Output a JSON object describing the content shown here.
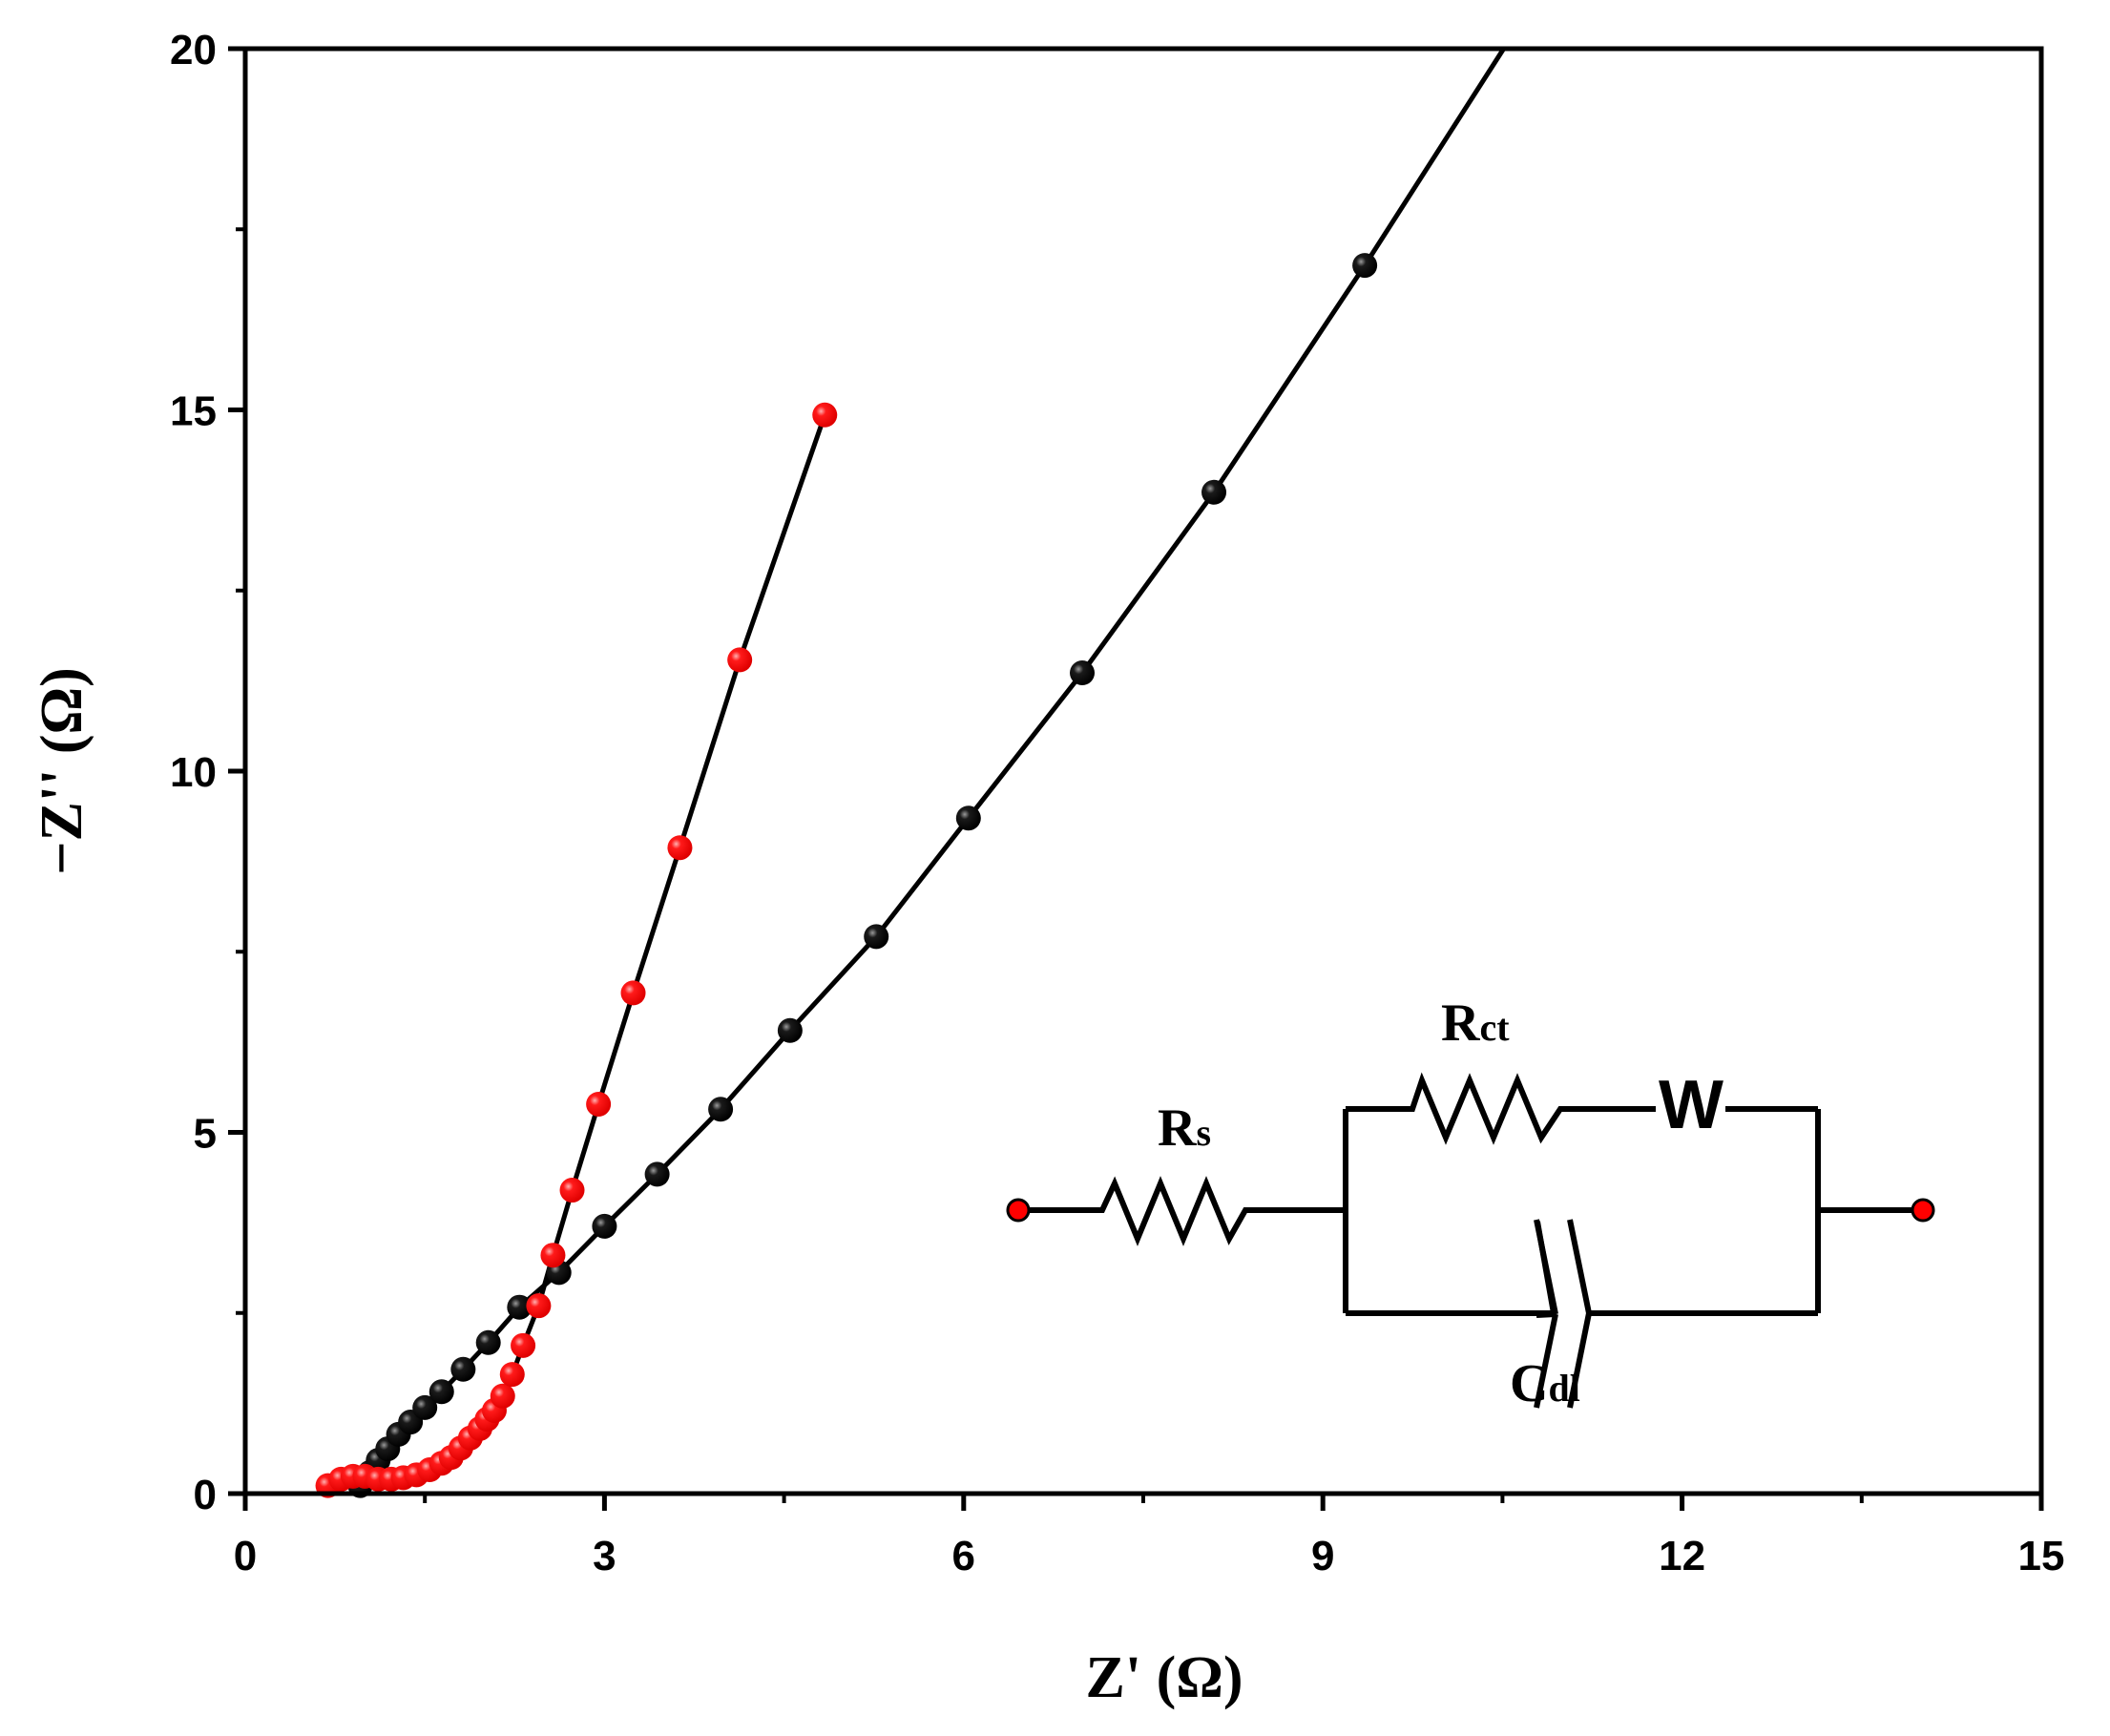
{
  "chart_data": {
    "type": "scatter",
    "title": "",
    "xlabel": "Z' (Ω)",
    "ylabel": "−Z'' (Ω)",
    "xlim": [
      0,
      15
    ],
    "ylim": [
      0,
      20
    ],
    "xticks": [
      0,
      3,
      6,
      9,
      12,
      15
    ],
    "yticks": [
      0,
      5,
      10,
      15,
      20
    ],
    "xtick_labels": [
      "0",
      "3",
      "6",
      "9",
      "12",
      "15"
    ],
    "ytick_labels": [
      "0",
      "5",
      "10",
      "15",
      "20"
    ],
    "grid": false,
    "legend": null,
    "series": [
      {
        "name": "red series",
        "color": "#ff0000",
        "marker": "sphere",
        "line": true,
        "x": [
          0.69,
          0.8,
          0.9,
          1.0,
          1.11,
          1.22,
          1.32,
          1.43,
          1.54,
          1.64,
          1.72,
          1.8,
          1.88,
          1.96,
          2.02,
          2.08,
          2.15,
          2.23,
          2.32,
          2.45,
          2.57,
          2.73,
          2.95,
          3.24,
          3.63,
          4.13,
          4.84
        ],
        "y": [
          0.11,
          0.2,
          0.24,
          0.24,
          0.2,
          0.2,
          0.22,
          0.26,
          0.33,
          0.42,
          0.5,
          0.63,
          0.77,
          0.9,
          1.03,
          1.15,
          1.35,
          1.65,
          2.05,
          2.6,
          3.3,
          4.2,
          5.39,
          6.93,
          8.94,
          11.54,
          14.93
        ]
      },
      {
        "name": "black series",
        "color": "#000000",
        "marker": "sphere",
        "line": true,
        "x": [
          0.96,
          1.04,
          1.11,
          1.19,
          1.28,
          1.38,
          1.5,
          1.64,
          1.82,
          2.03,
          2.29,
          2.62,
          3.0,
          3.44,
          3.97,
          4.55,
          5.27,
          6.04,
          6.99,
          8.09,
          9.35,
          10.51
        ],
        "y": [
          0.11,
          0.29,
          0.46,
          0.62,
          0.82,
          0.99,
          1.19,
          1.41,
          1.72,
          2.09,
          2.58,
          3.06,
          3.7,
          4.42,
          5.32,
          6.41,
          7.71,
          9.35,
          11.36,
          13.86,
          17.0,
          20.0
        ],
        "note_last_point": "line continues to top edge; last value is line end, no marker"
      }
    ],
    "annotations": {
      "equivalent_circuit": {
        "elements": [
          "Rs",
          "Rct",
          "W",
          "Cdl"
        ],
        "topology": "Rs in series with (Rct + W) parallel to Cdl"
      }
    }
  },
  "circuit": {
    "rs_main": "R",
    "rs_sub": "s",
    "rct_main": "R",
    "rct_sub": "ct",
    "w": "W",
    "cdl_main": "C",
    "cdl_sub": "dl"
  },
  "axes": {
    "x_title": "Z' (Ω)",
    "y_title": "−Z'' (Ω)"
  }
}
